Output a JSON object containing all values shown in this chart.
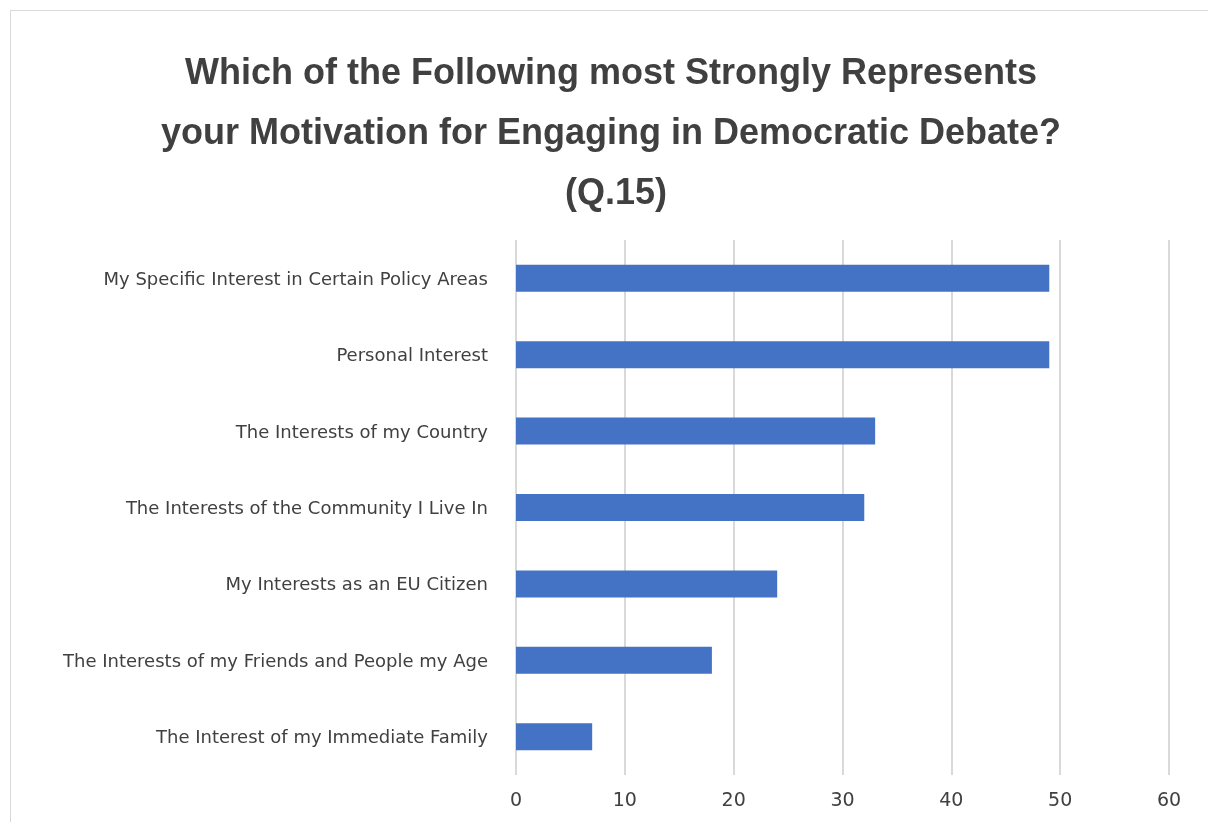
{
  "chart_data": {
    "type": "bar",
    "orientation": "horizontal",
    "title": "Which of the Following most Strongly Represents your Motivation for Engaging in Democratic Debate? (Q.15)",
    "categories": [
      "My Specific Interest in Certain Policy Areas",
      "Personal Interest",
      "The Interests of my Country",
      "The Interests of the Community I Live In",
      "My Interests as an EU Citizen",
      "The Interests of my Friends and People my Age",
      "The Interest of my Immediate Family"
    ],
    "values": [
      49,
      49,
      33,
      32,
      24,
      18,
      7
    ],
    "color": "#4472c4",
    "xlim": [
      0,
      60
    ],
    "xticks": [
      0,
      10,
      20,
      30,
      40,
      50,
      60
    ],
    "grid": "x"
  }
}
